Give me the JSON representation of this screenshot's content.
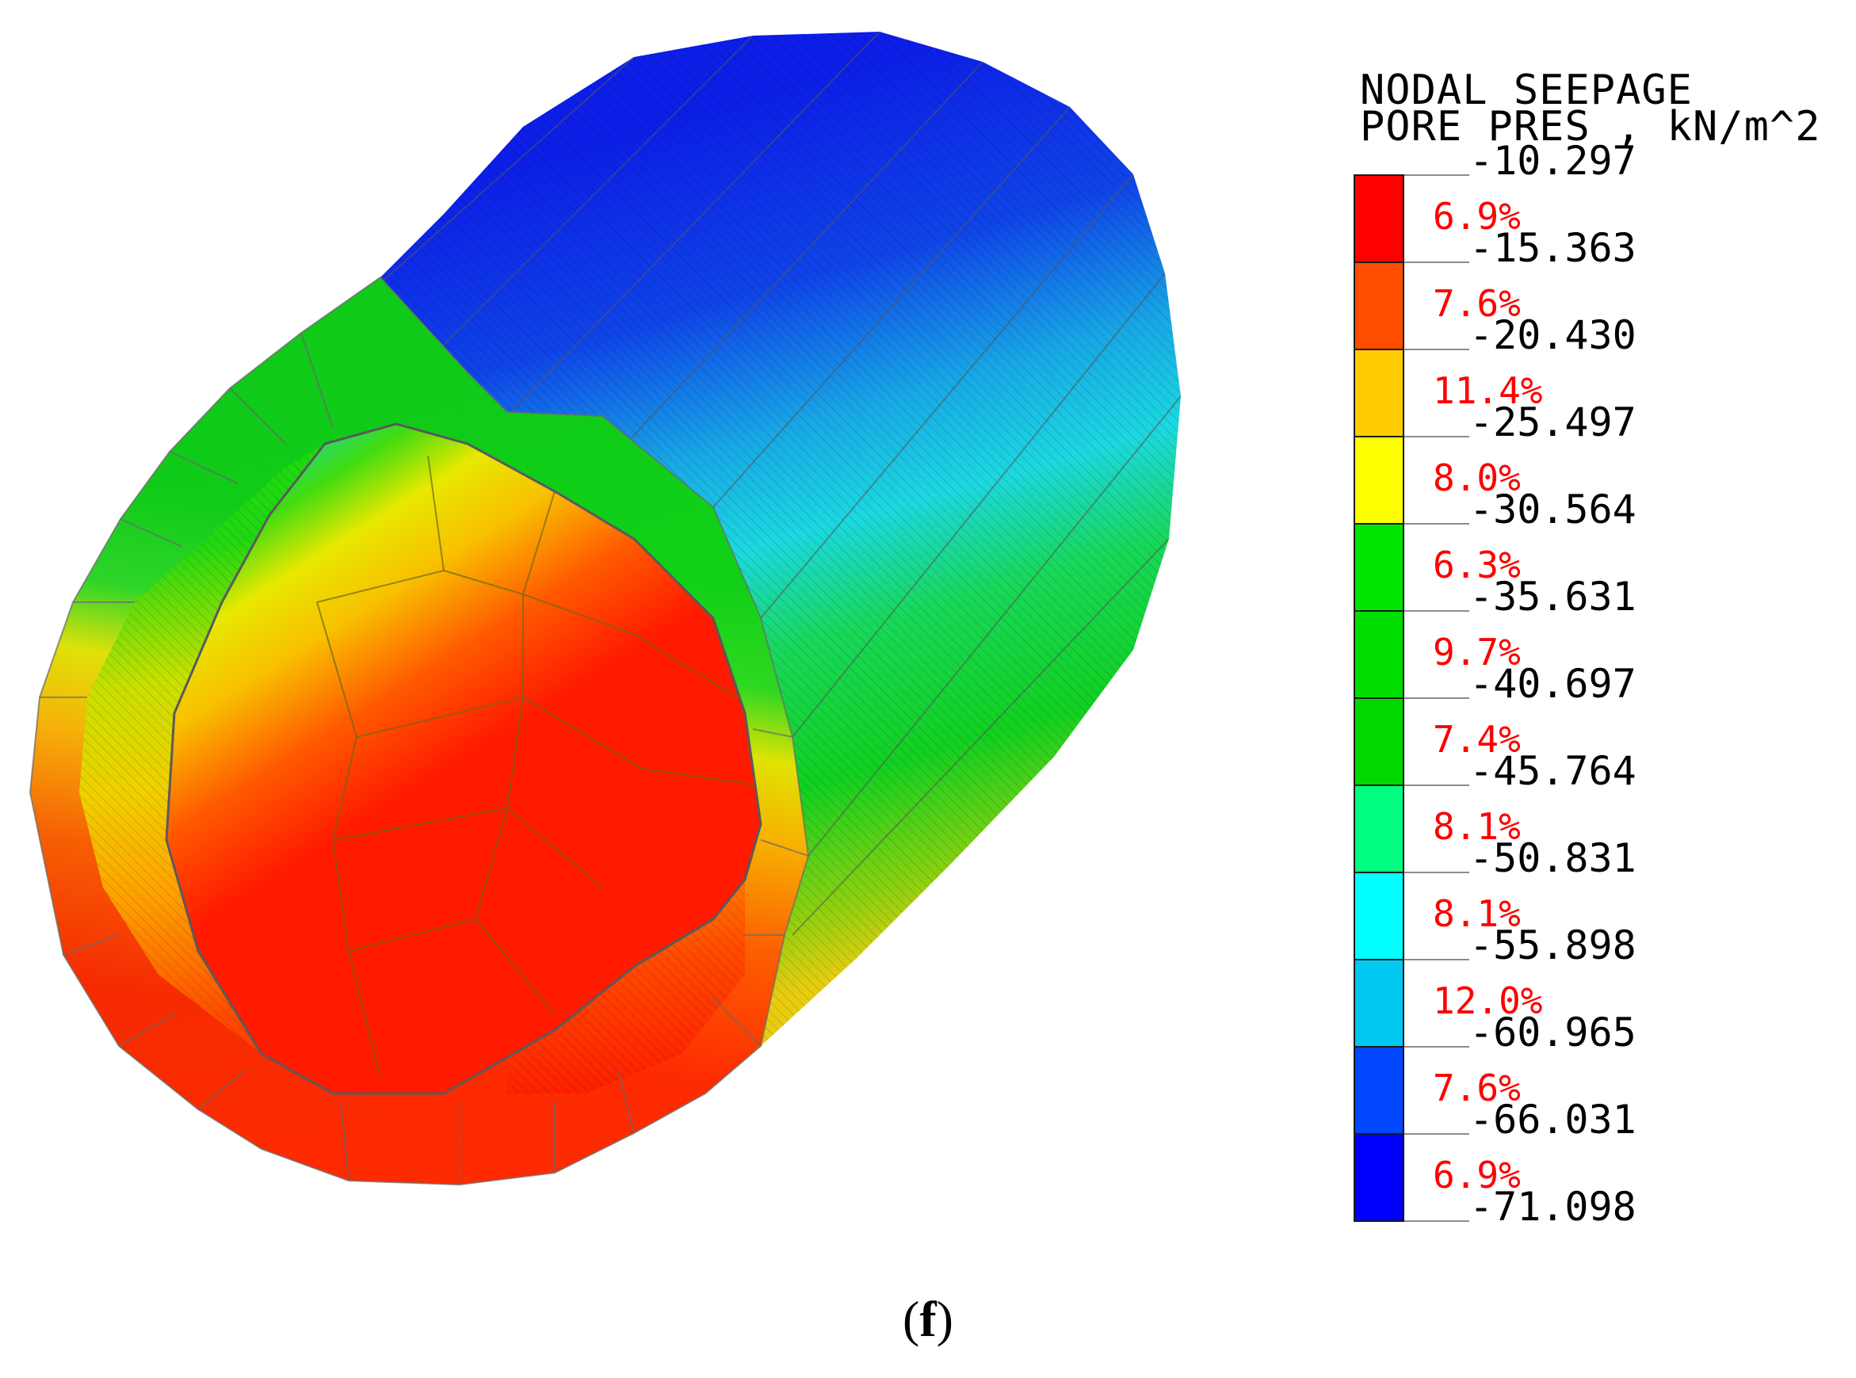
{
  "legend": {
    "title_line1": "NODAL SEEPAGE",
    "title_line2": "PORE PRES , kN/m^2",
    "ticks": [
      "-10.297",
      "-15.363",
      "-20.430",
      "-25.497",
      "-30.564",
      "-35.631",
      "-40.697",
      "-45.764",
      "-50.831",
      "-55.898",
      "-60.965",
      "-66.031",
      "-71.098"
    ],
    "bands": [
      {
        "percent": "6.9%",
        "color": "#ff0000"
      },
      {
        "percent": "7.6%",
        "color": "#ff4d00"
      },
      {
        "percent": "11.4%",
        "color": "#ffcc00"
      },
      {
        "percent": "8.0%",
        "color": "#ffff00"
      },
      {
        "percent": "6.3%",
        "color": "#00e600"
      },
      {
        "percent": "9.7%",
        "color": "#00dd00"
      },
      {
        "percent": "7.4%",
        "color": "#00d800"
      },
      {
        "percent": "8.1%",
        "color": "#00ff80"
      },
      {
        "percent": "8.1%",
        "color": "#00ffff"
      },
      {
        "percent": "12.0%",
        "color": "#00c8f0"
      },
      {
        "percent": "7.6%",
        "color": "#0046ff"
      },
      {
        "percent": "6.9%",
        "color": "#0000ff"
      }
    ]
  },
  "caption": {
    "open": "(",
    "letter": "f",
    "close": ")"
  }
}
